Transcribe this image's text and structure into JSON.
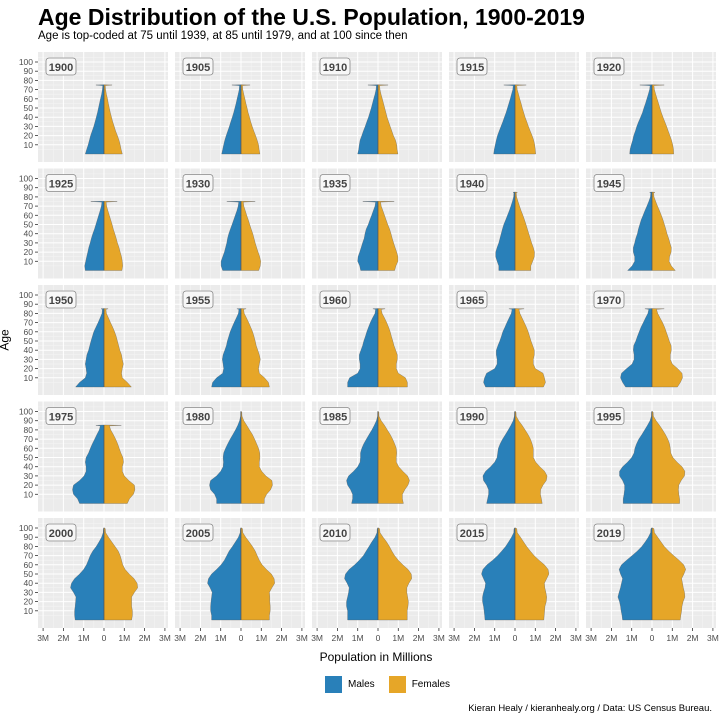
{
  "chart_data": {
    "type": "area",
    "title": "Age Distribution of the U.S. Population, 1900-2019",
    "subtitle": "Age is top-coded at 75 until 1939, at 85 until 1979, and at 100 since then",
    "xlabel": "Population in Millions",
    "ylabel": "Age",
    "caption": "Kieran Healy / kieranhealy.org / Data: US Census Bureau.",
    "x_ticks": [
      "3M",
      "2M",
      "1M",
      "0",
      "1M",
      "2M",
      "3M"
    ],
    "x_tick_values": [
      -3,
      -2,
      -1,
      0,
      1,
      2,
      3
    ],
    "y_ticks": [
      "10",
      "20",
      "30",
      "40",
      "50",
      "60",
      "70",
      "80",
      "90",
      "100"
    ],
    "y_tick_values": [
      10,
      20,
      30,
      40,
      50,
      60,
      70,
      80,
      90,
      100
    ],
    "xlim": [
      -3,
      3
    ],
    "ylim": [
      0,
      100
    ],
    "age_step": 5,
    "legend": {
      "position": "bottom",
      "entries": [
        {
          "label": "Males",
          "color": "#2980b9"
        },
        {
          "label": "Females",
          "color": "#e6a628"
        }
      ]
    },
    "panels": [
      {
        "year": "1900",
        "top_code": 75,
        "top_male": 0.4,
        "top_female": 0.4,
        "males": [
          0.92,
          0.85,
          0.78,
          0.72,
          0.66,
          0.58,
          0.5,
          0.44,
          0.38,
          0.32,
          0.27,
          0.22,
          0.17,
          0.12,
          0.08
        ],
        "females": [
          0.9,
          0.84,
          0.8,
          0.74,
          0.66,
          0.57,
          0.5,
          0.43,
          0.37,
          0.31,
          0.26,
          0.21,
          0.17,
          0.12,
          0.08
        ]
      },
      {
        "year": "1905",
        "top_code": 75,
        "top_male": 0.45,
        "top_female": 0.45,
        "males": [
          0.95,
          0.9,
          0.85,
          0.8,
          0.73,
          0.65,
          0.57,
          0.5,
          0.43,
          0.36,
          0.3,
          0.24,
          0.19,
          0.14,
          0.09
        ],
        "females": [
          0.93,
          0.89,
          0.86,
          0.8,
          0.72,
          0.63,
          0.55,
          0.48,
          0.42,
          0.35,
          0.3,
          0.24,
          0.19,
          0.14,
          0.09
        ]
      },
      {
        "year": "1910",
        "top_code": 75,
        "top_male": 0.5,
        "top_female": 0.5,
        "males": [
          1.0,
          0.95,
          0.92,
          0.88,
          0.8,
          0.72,
          0.63,
          0.55,
          0.47,
          0.4,
          0.33,
          0.27,
          0.21,
          0.15,
          0.1
        ],
        "females": [
          0.98,
          0.94,
          0.92,
          0.86,
          0.76,
          0.68,
          0.6,
          0.52,
          0.45,
          0.39,
          0.33,
          0.27,
          0.21,
          0.15,
          0.1
        ]
      },
      {
        "year": "1915",
        "top_code": 75,
        "top_male": 0.55,
        "top_female": 0.55,
        "males": [
          1.05,
          1.02,
          0.97,
          0.92,
          0.86,
          0.78,
          0.69,
          0.6,
          0.52,
          0.44,
          0.37,
          0.3,
          0.23,
          0.17,
          0.11
        ],
        "females": [
          1.02,
          1.0,
          0.97,
          0.92,
          0.84,
          0.75,
          0.66,
          0.58,
          0.5,
          0.43,
          0.36,
          0.3,
          0.23,
          0.17,
          0.11
        ]
      },
      {
        "year": "1920",
        "top_code": 75,
        "top_male": 0.6,
        "top_female": 0.6,
        "males": [
          1.1,
          1.08,
          1.02,
          0.95,
          0.9,
          0.82,
          0.75,
          0.66,
          0.56,
          0.47,
          0.4,
          0.32,
          0.25,
          0.18,
          0.12
        ],
        "females": [
          1.07,
          1.06,
          1.02,
          0.96,
          0.88,
          0.8,
          0.72,
          0.63,
          0.54,
          0.46,
          0.39,
          0.32,
          0.25,
          0.18,
          0.12
        ]
      },
      {
        "year": "1925",
        "top_code": 75,
        "top_male": 0.65,
        "top_female": 0.65,
        "males": [
          0.92,
          0.95,
          0.9,
          0.85,
          0.8,
          0.75,
          0.68,
          0.62,
          0.55,
          0.47,
          0.4,
          0.33,
          0.26,
          0.19,
          0.13
        ],
        "females": [
          0.88,
          0.92,
          0.9,
          0.86,
          0.8,
          0.74,
          0.66,
          0.6,
          0.53,
          0.46,
          0.4,
          0.33,
          0.26,
          0.19,
          0.13
        ]
      },
      {
        "year": "1930",
        "top_code": 75,
        "top_male": 0.7,
        "top_female": 0.7,
        "males": [
          0.9,
          0.98,
          0.98,
          0.9,
          0.82,
          0.76,
          0.7,
          0.66,
          0.6,
          0.52,
          0.44,
          0.36,
          0.28,
          0.2,
          0.14
        ],
        "females": [
          0.87,
          0.95,
          0.97,
          0.92,
          0.84,
          0.77,
          0.7,
          0.64,
          0.58,
          0.5,
          0.43,
          0.36,
          0.28,
          0.21,
          0.14
        ]
      },
      {
        "year": "1935",
        "top_code": 75,
        "top_male": 0.75,
        "top_female": 0.8,
        "males": [
          0.85,
          0.9,
          1.0,
          0.98,
          0.9,
          0.83,
          0.76,
          0.68,
          0.64,
          0.58,
          0.48,
          0.4,
          0.31,
          0.23,
          0.15
        ],
        "females": [
          0.82,
          0.88,
          0.98,
          0.98,
          0.92,
          0.84,
          0.77,
          0.7,
          0.64,
          0.57,
          0.48,
          0.4,
          0.32,
          0.24,
          0.16
        ]
      },
      {
        "year": "1940",
        "top_code": 85,
        "top_male": 0.1,
        "top_female": 0.12,
        "males": [
          0.8,
          0.8,
          0.88,
          0.95,
          0.95,
          0.88,
          0.8,
          0.74,
          0.68,
          0.62,
          0.55,
          0.46,
          0.37,
          0.28,
          0.2,
          0.13,
          0.07
        ],
        "females": [
          0.78,
          0.78,
          0.87,
          0.95,
          0.96,
          0.9,
          0.82,
          0.75,
          0.68,
          0.61,
          0.54,
          0.47,
          0.39,
          0.3,
          0.22,
          0.15,
          0.08
        ]
      },
      {
        "year": "1945",
        "top_code": 85,
        "top_male": 0.12,
        "top_female": 0.15,
        "males": [
          1.2,
          0.98,
          0.85,
          0.85,
          0.92,
          0.92,
          0.85,
          0.8,
          0.72,
          0.67,
          0.6,
          0.53,
          0.44,
          0.35,
          0.25,
          0.16,
          0.08
        ],
        "females": [
          1.15,
          0.95,
          0.84,
          0.86,
          0.94,
          0.95,
          0.88,
          0.82,
          0.74,
          0.68,
          0.61,
          0.54,
          0.46,
          0.37,
          0.27,
          0.18,
          0.1
        ]
      },
      {
        "year": "1950",
        "top_code": 85,
        "top_male": 0.15,
        "top_female": 0.2,
        "males": [
          1.4,
          1.2,
          0.92,
          0.85,
          0.88,
          0.92,
          0.88,
          0.84,
          0.76,
          0.7,
          0.64,
          0.57,
          0.5,
          0.4,
          0.29,
          0.19,
          0.1
        ],
        "females": [
          1.35,
          1.15,
          0.9,
          0.86,
          0.9,
          0.95,
          0.9,
          0.86,
          0.78,
          0.72,
          0.66,
          0.6,
          0.52,
          0.43,
          0.32,
          0.22,
          0.12
        ]
      },
      {
        "year": "1955",
        "top_code": 85,
        "top_male": 0.2,
        "top_female": 0.25,
        "males": [
          1.45,
          1.4,
          1.2,
          0.9,
          0.85,
          0.88,
          0.92,
          0.88,
          0.8,
          0.72,
          0.67,
          0.6,
          0.53,
          0.44,
          0.34,
          0.23,
          0.13
        ],
        "females": [
          1.4,
          1.35,
          1.16,
          0.9,
          0.86,
          0.9,
          0.95,
          0.9,
          0.83,
          0.75,
          0.7,
          0.64,
          0.57,
          0.48,
          0.38,
          0.27,
          0.16
        ]
      },
      {
        "year": "1960",
        "top_code": 85,
        "top_male": 0.25,
        "top_female": 0.35,
        "males": [
          1.5,
          1.5,
          1.4,
          1.0,
          0.88,
          0.88,
          0.92,
          0.92,
          0.84,
          0.76,
          0.7,
          0.62,
          0.55,
          0.47,
          0.38,
          0.27,
          0.15
        ],
        "females": [
          1.45,
          1.45,
          1.35,
          1.0,
          0.9,
          0.9,
          0.95,
          0.95,
          0.87,
          0.79,
          0.73,
          0.66,
          0.6,
          0.52,
          0.43,
          0.32,
          0.2
        ]
      },
      {
        "year": "1965",
        "top_code": 85,
        "top_male": 0.3,
        "top_female": 0.45,
        "males": [
          1.45,
          1.55,
          1.5,
          1.4,
          1.0,
          0.88,
          0.88,
          0.92,
          0.92,
          0.84,
          0.75,
          0.67,
          0.6,
          0.5,
          0.4,
          0.29,
          0.18
        ],
        "females": [
          1.4,
          1.5,
          1.45,
          1.38,
          1.0,
          0.9,
          0.9,
          0.95,
          0.95,
          0.87,
          0.79,
          0.72,
          0.65,
          0.56,
          0.46,
          0.35,
          0.24
        ]
      },
      {
        "year": "1970",
        "top_code": 85,
        "top_male": 0.35,
        "top_female": 0.6,
        "males": [
          1.3,
          1.45,
          1.55,
          1.5,
          1.25,
          0.98,
          0.88,
          0.88,
          0.92,
          0.9,
          0.8,
          0.72,
          0.63,
          0.54,
          0.43,
          0.32,
          0.2
        ],
        "females": [
          1.25,
          1.4,
          1.5,
          1.48,
          1.26,
          1.0,
          0.9,
          0.9,
          0.95,
          0.94,
          0.85,
          0.78,
          0.7,
          0.62,
          0.52,
          0.4,
          0.28
        ]
      },
      {
        "year": "1975",
        "top_code": 85,
        "top_male": 0.4,
        "top_female": 0.85,
        "males": [
          1.2,
          1.3,
          1.5,
          1.55,
          1.5,
          1.2,
          0.98,
          0.88,
          0.88,
          0.92,
          0.88,
          0.76,
          0.67,
          0.57,
          0.46,
          0.35,
          0.23
        ],
        "females": [
          1.15,
          1.25,
          1.45,
          1.52,
          1.5,
          1.22,
          1.0,
          0.9,
          0.9,
          0.96,
          0.93,
          0.83,
          0.75,
          0.67,
          0.57,
          0.46,
          0.33
        ]
      },
      {
        "year": "1980",
        "top_code": 100,
        "top_male": 0.005,
        "top_female": 0.01,
        "males": [
          1.2,
          1.2,
          1.3,
          1.5,
          1.55,
          1.5,
          1.2,
          1.0,
          0.88,
          0.86,
          0.88,
          0.85,
          0.76,
          0.65,
          0.53,
          0.4,
          0.27,
          0.16,
          0.07,
          0.02
        ],
        "females": [
          1.15,
          1.15,
          1.26,
          1.46,
          1.55,
          1.52,
          1.22,
          1.02,
          0.9,
          0.9,
          0.93,
          0.92,
          0.86,
          0.77,
          0.67,
          0.56,
          0.42,
          0.28,
          0.14,
          0.05
        ]
      },
      {
        "year": "1985",
        "top_code": 100,
        "top_male": 0.005,
        "top_female": 0.01,
        "males": [
          1.3,
          1.25,
          1.25,
          1.35,
          1.5,
          1.55,
          1.45,
          1.2,
          1.0,
          0.88,
          0.86,
          0.86,
          0.8,
          0.7,
          0.57,
          0.44,
          0.3,
          0.18,
          0.08,
          0.02
        ],
        "females": [
          1.25,
          1.2,
          1.2,
          1.32,
          1.48,
          1.55,
          1.46,
          1.22,
          1.02,
          0.9,
          0.9,
          0.92,
          0.9,
          0.82,
          0.72,
          0.6,
          0.46,
          0.32,
          0.16,
          0.05
        ]
      },
      {
        "year": "1990",
        "top_code": 100,
        "top_male": 0.005,
        "top_female": 0.015,
        "males": [
          1.4,
          1.35,
          1.3,
          1.3,
          1.4,
          1.55,
          1.58,
          1.45,
          1.2,
          1.0,
          0.88,
          0.85,
          0.82,
          0.73,
          0.61,
          0.47,
          0.33,
          0.2,
          0.09,
          0.03
        ],
        "females": [
          1.34,
          1.3,
          1.25,
          1.26,
          1.38,
          1.54,
          1.58,
          1.46,
          1.22,
          1.02,
          0.9,
          0.9,
          0.9,
          0.84,
          0.76,
          0.64,
          0.5,
          0.35,
          0.18,
          0.06
        ]
      },
      {
        "year": "1995",
        "top_code": 100,
        "top_male": 0.005,
        "top_female": 0.015,
        "males": [
          1.42,
          1.42,
          1.38,
          1.35,
          1.35,
          1.45,
          1.6,
          1.6,
          1.45,
          1.2,
          1.0,
          0.88,
          0.84,
          0.76,
          0.65,
          0.5,
          0.36,
          0.22,
          0.1,
          0.03
        ],
        "females": [
          1.36,
          1.36,
          1.32,
          1.3,
          1.32,
          1.44,
          1.6,
          1.62,
          1.48,
          1.23,
          1.03,
          0.92,
          0.9,
          0.86,
          0.78,
          0.66,
          0.52,
          0.37,
          0.2,
          0.07
        ]
      },
      {
        "year": "2000",
        "top_code": 100,
        "top_male": 0.01,
        "top_female": 0.02,
        "males": [
          1.42,
          1.45,
          1.45,
          1.42,
          1.4,
          1.38,
          1.5,
          1.65,
          1.6,
          1.45,
          1.2,
          1.0,
          0.86,
          0.77,
          0.68,
          0.55,
          0.38,
          0.24,
          0.12,
          0.04
        ],
        "females": [
          1.36,
          1.4,
          1.4,
          1.36,
          1.36,
          1.36,
          1.5,
          1.66,
          1.63,
          1.48,
          1.24,
          1.04,
          0.92,
          0.86,
          0.8,
          0.7,
          0.54,
          0.38,
          0.22,
          0.08
        ]
      },
      {
        "year": "2005",
        "top_code": 100,
        "top_male": 0.01,
        "top_female": 0.02,
        "males": [
          1.45,
          1.45,
          1.5,
          1.5,
          1.48,
          1.45,
          1.42,
          1.52,
          1.65,
          1.6,
          1.45,
          1.2,
          0.98,
          0.82,
          0.7,
          0.58,
          0.42,
          0.27,
          0.13,
          0.04
        ],
        "females": [
          1.4,
          1.4,
          1.44,
          1.44,
          1.42,
          1.42,
          1.4,
          1.52,
          1.66,
          1.63,
          1.5,
          1.25,
          1.04,
          0.9,
          0.8,
          0.7,
          0.56,
          0.4,
          0.23,
          0.09
        ]
      },
      {
        "year": "2010",
        "top_code": 100,
        "top_male": 0.01,
        "top_female": 0.02,
        "males": [
          1.5,
          1.5,
          1.5,
          1.55,
          1.55,
          1.5,
          1.45,
          1.42,
          1.52,
          1.65,
          1.6,
          1.42,
          1.15,
          0.92,
          0.72,
          0.58,
          0.44,
          0.3,
          0.15,
          0.05
        ],
        "females": [
          1.44,
          1.44,
          1.44,
          1.48,
          1.5,
          1.46,
          1.42,
          1.42,
          1.52,
          1.66,
          1.64,
          1.48,
          1.22,
          1.0,
          0.82,
          0.68,
          0.56,
          0.42,
          0.25,
          0.1
        ]
      },
      {
        "year": "2015",
        "top_code": 100,
        "top_male": 0.01,
        "top_female": 0.02,
        "males": [
          1.48,
          1.5,
          1.52,
          1.55,
          1.6,
          1.6,
          1.55,
          1.48,
          1.45,
          1.55,
          1.65,
          1.58,
          1.38,
          1.1,
          0.85,
          0.65,
          0.46,
          0.31,
          0.17,
          0.06
        ],
        "females": [
          1.42,
          1.44,
          1.46,
          1.48,
          1.54,
          1.56,
          1.52,
          1.47,
          1.45,
          1.56,
          1.67,
          1.63,
          1.45,
          1.18,
          0.94,
          0.75,
          0.57,
          0.42,
          0.27,
          0.11
        ]
      },
      {
        "year": "2019",
        "top_code": 100,
        "top_male": 0.01,
        "top_female": 0.02,
        "males": [
          1.45,
          1.48,
          1.52,
          1.55,
          1.6,
          1.68,
          1.62,
          1.55,
          1.5,
          1.45,
          1.55,
          1.62,
          1.5,
          1.25,
          0.98,
          0.72,
          0.5,
          0.33,
          0.18,
          0.07
        ],
        "females": [
          1.39,
          1.42,
          1.46,
          1.48,
          1.53,
          1.62,
          1.6,
          1.54,
          1.5,
          1.46,
          1.57,
          1.66,
          1.56,
          1.33,
          1.07,
          0.82,
          0.6,
          0.44,
          0.28,
          0.12
        ]
      }
    ]
  }
}
